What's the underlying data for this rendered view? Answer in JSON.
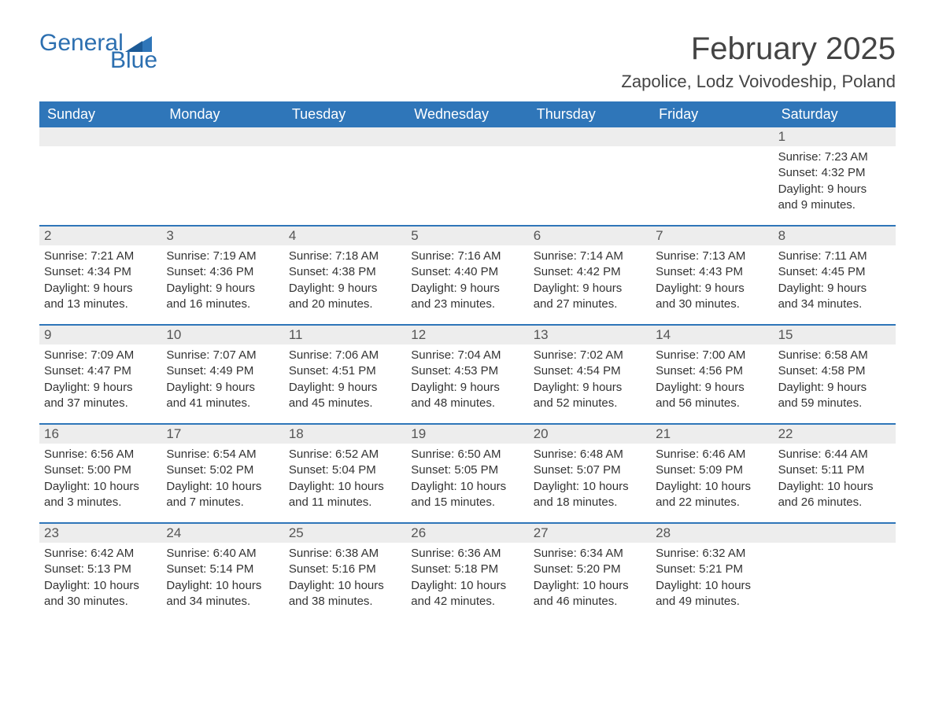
{
  "logo": {
    "text_general": "General",
    "text_blue": "Blue",
    "flag_color": "#2f76b9"
  },
  "header": {
    "month_title": "February 2025",
    "location": "Zapolice, Lodz Voivodeship, Poland"
  },
  "styling": {
    "header_bg": "#2f76b9",
    "header_fg": "#ffffff",
    "daynum_bg": "#ededed",
    "daynum_fg": "#555555",
    "body_text_color": "#333333",
    "title_color": "#444444",
    "logo_color": "#2c6fb0",
    "page_bg": "#ffffff",
    "week_border_color": "#2f76b9",
    "font_family": "Arial",
    "month_title_fontsize": 40,
    "location_fontsize": 22,
    "weekday_fontsize": 18,
    "daynum_fontsize": 17,
    "body_fontsize": 15
  },
  "weekdays": [
    "Sunday",
    "Monday",
    "Tuesday",
    "Wednesday",
    "Thursday",
    "Friday",
    "Saturday"
  ],
  "weeks": [
    [
      {
        "day": "",
        "sunrise": "",
        "sunset": "",
        "daylight1": "",
        "daylight2": ""
      },
      {
        "day": "",
        "sunrise": "",
        "sunset": "",
        "daylight1": "",
        "daylight2": ""
      },
      {
        "day": "",
        "sunrise": "",
        "sunset": "",
        "daylight1": "",
        "daylight2": ""
      },
      {
        "day": "",
        "sunrise": "",
        "sunset": "",
        "daylight1": "",
        "daylight2": ""
      },
      {
        "day": "",
        "sunrise": "",
        "sunset": "",
        "daylight1": "",
        "daylight2": ""
      },
      {
        "day": "",
        "sunrise": "",
        "sunset": "",
        "daylight1": "",
        "daylight2": ""
      },
      {
        "day": "1",
        "sunrise": "Sunrise: 7:23 AM",
        "sunset": "Sunset: 4:32 PM",
        "daylight1": "Daylight: 9 hours",
        "daylight2": "and 9 minutes."
      }
    ],
    [
      {
        "day": "2",
        "sunrise": "Sunrise: 7:21 AM",
        "sunset": "Sunset: 4:34 PM",
        "daylight1": "Daylight: 9 hours",
        "daylight2": "and 13 minutes."
      },
      {
        "day": "3",
        "sunrise": "Sunrise: 7:19 AM",
        "sunset": "Sunset: 4:36 PM",
        "daylight1": "Daylight: 9 hours",
        "daylight2": "and 16 minutes."
      },
      {
        "day": "4",
        "sunrise": "Sunrise: 7:18 AM",
        "sunset": "Sunset: 4:38 PM",
        "daylight1": "Daylight: 9 hours",
        "daylight2": "and 20 minutes."
      },
      {
        "day": "5",
        "sunrise": "Sunrise: 7:16 AM",
        "sunset": "Sunset: 4:40 PM",
        "daylight1": "Daylight: 9 hours",
        "daylight2": "and 23 minutes."
      },
      {
        "day": "6",
        "sunrise": "Sunrise: 7:14 AM",
        "sunset": "Sunset: 4:42 PM",
        "daylight1": "Daylight: 9 hours",
        "daylight2": "and 27 minutes."
      },
      {
        "day": "7",
        "sunrise": "Sunrise: 7:13 AM",
        "sunset": "Sunset: 4:43 PM",
        "daylight1": "Daylight: 9 hours",
        "daylight2": "and 30 minutes."
      },
      {
        "day": "8",
        "sunrise": "Sunrise: 7:11 AM",
        "sunset": "Sunset: 4:45 PM",
        "daylight1": "Daylight: 9 hours",
        "daylight2": "and 34 minutes."
      }
    ],
    [
      {
        "day": "9",
        "sunrise": "Sunrise: 7:09 AM",
        "sunset": "Sunset: 4:47 PM",
        "daylight1": "Daylight: 9 hours",
        "daylight2": "and 37 minutes."
      },
      {
        "day": "10",
        "sunrise": "Sunrise: 7:07 AM",
        "sunset": "Sunset: 4:49 PM",
        "daylight1": "Daylight: 9 hours",
        "daylight2": "and 41 minutes."
      },
      {
        "day": "11",
        "sunrise": "Sunrise: 7:06 AM",
        "sunset": "Sunset: 4:51 PM",
        "daylight1": "Daylight: 9 hours",
        "daylight2": "and 45 minutes."
      },
      {
        "day": "12",
        "sunrise": "Sunrise: 7:04 AM",
        "sunset": "Sunset: 4:53 PM",
        "daylight1": "Daylight: 9 hours",
        "daylight2": "and 48 minutes."
      },
      {
        "day": "13",
        "sunrise": "Sunrise: 7:02 AM",
        "sunset": "Sunset: 4:54 PM",
        "daylight1": "Daylight: 9 hours",
        "daylight2": "and 52 minutes."
      },
      {
        "day": "14",
        "sunrise": "Sunrise: 7:00 AM",
        "sunset": "Sunset: 4:56 PM",
        "daylight1": "Daylight: 9 hours",
        "daylight2": "and 56 minutes."
      },
      {
        "day": "15",
        "sunrise": "Sunrise: 6:58 AM",
        "sunset": "Sunset: 4:58 PM",
        "daylight1": "Daylight: 9 hours",
        "daylight2": "and 59 minutes."
      }
    ],
    [
      {
        "day": "16",
        "sunrise": "Sunrise: 6:56 AM",
        "sunset": "Sunset: 5:00 PM",
        "daylight1": "Daylight: 10 hours",
        "daylight2": "and 3 minutes."
      },
      {
        "day": "17",
        "sunrise": "Sunrise: 6:54 AM",
        "sunset": "Sunset: 5:02 PM",
        "daylight1": "Daylight: 10 hours",
        "daylight2": "and 7 minutes."
      },
      {
        "day": "18",
        "sunrise": "Sunrise: 6:52 AM",
        "sunset": "Sunset: 5:04 PM",
        "daylight1": "Daylight: 10 hours",
        "daylight2": "and 11 minutes."
      },
      {
        "day": "19",
        "sunrise": "Sunrise: 6:50 AM",
        "sunset": "Sunset: 5:05 PM",
        "daylight1": "Daylight: 10 hours",
        "daylight2": "and 15 minutes."
      },
      {
        "day": "20",
        "sunrise": "Sunrise: 6:48 AM",
        "sunset": "Sunset: 5:07 PM",
        "daylight1": "Daylight: 10 hours",
        "daylight2": "and 18 minutes."
      },
      {
        "day": "21",
        "sunrise": "Sunrise: 6:46 AM",
        "sunset": "Sunset: 5:09 PM",
        "daylight1": "Daylight: 10 hours",
        "daylight2": "and 22 minutes."
      },
      {
        "day": "22",
        "sunrise": "Sunrise: 6:44 AM",
        "sunset": "Sunset: 5:11 PM",
        "daylight1": "Daylight: 10 hours",
        "daylight2": "and 26 minutes."
      }
    ],
    [
      {
        "day": "23",
        "sunrise": "Sunrise: 6:42 AM",
        "sunset": "Sunset: 5:13 PM",
        "daylight1": "Daylight: 10 hours",
        "daylight2": "and 30 minutes."
      },
      {
        "day": "24",
        "sunrise": "Sunrise: 6:40 AM",
        "sunset": "Sunset: 5:14 PM",
        "daylight1": "Daylight: 10 hours",
        "daylight2": "and 34 minutes."
      },
      {
        "day": "25",
        "sunrise": "Sunrise: 6:38 AM",
        "sunset": "Sunset: 5:16 PM",
        "daylight1": "Daylight: 10 hours",
        "daylight2": "and 38 minutes."
      },
      {
        "day": "26",
        "sunrise": "Sunrise: 6:36 AM",
        "sunset": "Sunset: 5:18 PM",
        "daylight1": "Daylight: 10 hours",
        "daylight2": "and 42 minutes."
      },
      {
        "day": "27",
        "sunrise": "Sunrise: 6:34 AM",
        "sunset": "Sunset: 5:20 PM",
        "daylight1": "Daylight: 10 hours",
        "daylight2": "and 46 minutes."
      },
      {
        "day": "28",
        "sunrise": "Sunrise: 6:32 AM",
        "sunset": "Sunset: 5:21 PM",
        "daylight1": "Daylight: 10 hours",
        "daylight2": "and 49 minutes."
      },
      {
        "day": "",
        "sunrise": "",
        "sunset": "",
        "daylight1": "",
        "daylight2": ""
      }
    ]
  ]
}
